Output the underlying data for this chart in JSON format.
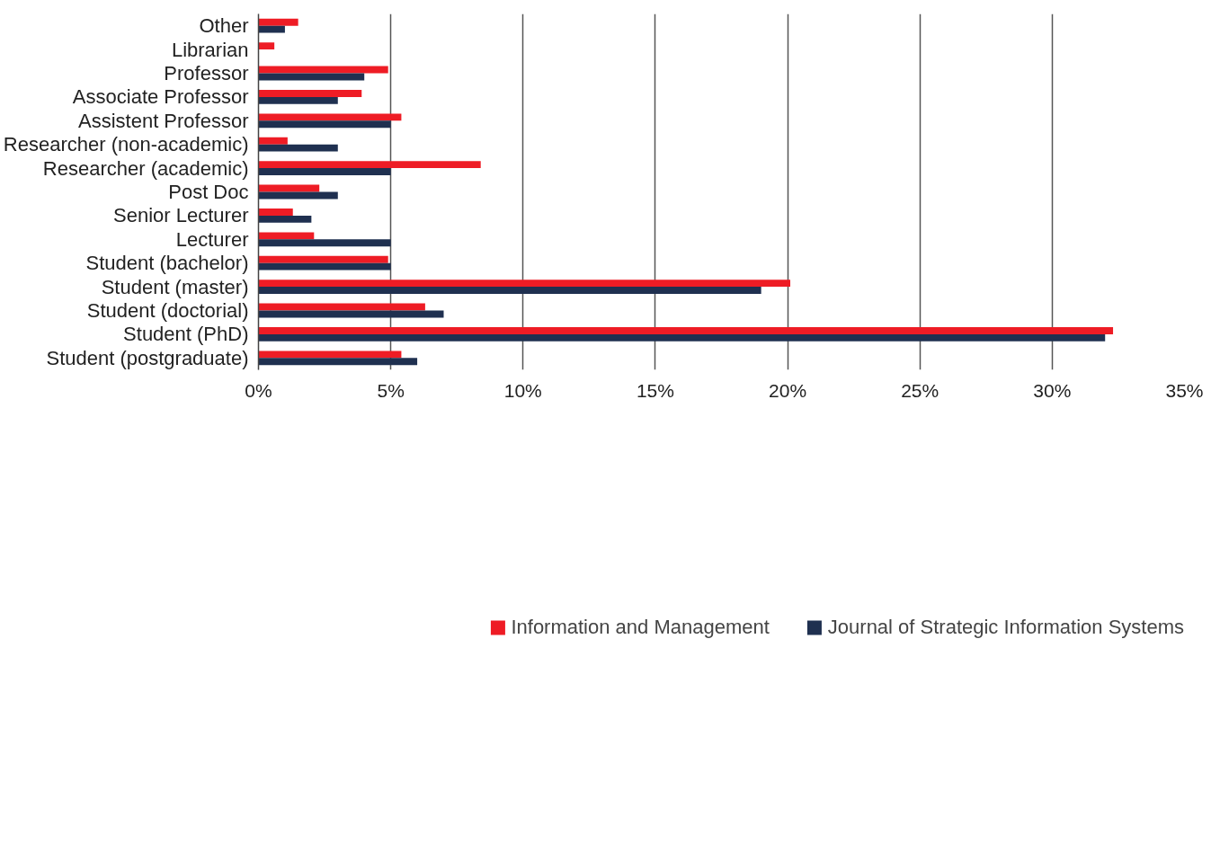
{
  "chart_data": {
    "type": "bar",
    "orientation": "horizontal",
    "categories": [
      "Other",
      "Librarian",
      "Professor",
      "Associate Professor",
      "Assistent Professor",
      "Researcher (non-academic)",
      "Researcher (academic)",
      "Post Doc",
      "Senior Lecturer",
      "Lecturer",
      "Student (bachelor)",
      "Student (master)",
      "Student (doctorial)",
      "Student (PhD)",
      "Student (postgraduate)"
    ],
    "series": [
      {
        "name": "Information and Management",
        "color": "#ee1c25",
        "values": [
          1.5,
          0.6,
          4.9,
          3.9,
          5.4,
          1.1,
          8.4,
          2.3,
          1.3,
          2.1,
          4.9,
          20.1,
          6.3,
          32.3,
          5.4
        ]
      },
      {
        "name": "Journal of Strategic Information Systems",
        "color": "#1f3050",
        "values": [
          1.0,
          0,
          4.0,
          3.0,
          5.0,
          3.0,
          5.0,
          3.0,
          2.0,
          5.0,
          5.0,
          19.0,
          7.0,
          32.0,
          6.0
        ]
      }
    ],
    "xlim": [
      0,
      35
    ],
    "xticks": [
      {
        "value": 0,
        "label": "0%"
      },
      {
        "value": 5,
        "label": "5%"
      },
      {
        "value": 10,
        "label": "10%"
      },
      {
        "value": 15,
        "label": "15%"
      },
      {
        "value": 20,
        "label": "20%"
      },
      {
        "value": 25,
        "label": "25%"
      },
      {
        "value": 30,
        "label": "30%"
      },
      {
        "value": 35,
        "label": "35%"
      }
    ],
    "grid": "x",
    "legend": "bottom"
  }
}
